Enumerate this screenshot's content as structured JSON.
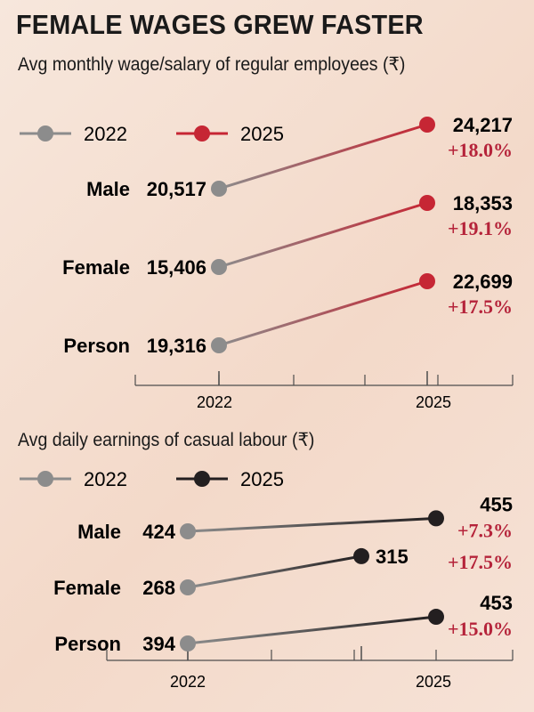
{
  "title": "FEMALE WAGES GREW FASTER",
  "colors": {
    "y2022": "#8c8c8c",
    "regular2025": "#c62634",
    "casual2025": "#231f20",
    "percent": "#b5233a",
    "axis": "#4d4d4d"
  },
  "chart_data": [
    {
      "type": "line",
      "title": "Avg monthly wage/salary of regular employees (₹)",
      "x": [
        "2022",
        "2025"
      ],
      "legend": [
        "2022",
        "2025"
      ],
      "series": [
        {
          "name": "Male",
          "values": [
            20517,
            24217
          ],
          "labels": [
            "20,517",
            "24,217"
          ],
          "change": "+18.0%"
        },
        {
          "name": "Female",
          "values": [
            15406,
            18353
          ],
          "labels": [
            "15,406",
            "18,353"
          ],
          "change": "+19.1%"
        },
        {
          "name": "Person",
          "values": [
            19316,
            22699
          ],
          "labels": [
            "19,316",
            "22,699"
          ],
          "change": "+17.5%"
        }
      ]
    },
    {
      "type": "line",
      "title": "Avg daily earnings of casual labour (₹)",
      "x": [
        "2022",
        "2025"
      ],
      "legend": [
        "2022",
        "2025"
      ],
      "series": [
        {
          "name": "Male",
          "values": [
            424,
            455
          ],
          "labels": [
            "424",
            "455"
          ],
          "change": "+7.3%"
        },
        {
          "name": "Female",
          "values": [
            268,
            315
          ],
          "labels": [
            "268",
            "315"
          ],
          "change": "+17.5%"
        },
        {
          "name": "Person",
          "values": [
            394,
            453
          ],
          "labels": [
            "394",
            "453"
          ],
          "change": "+15.0%"
        }
      ]
    }
  ]
}
